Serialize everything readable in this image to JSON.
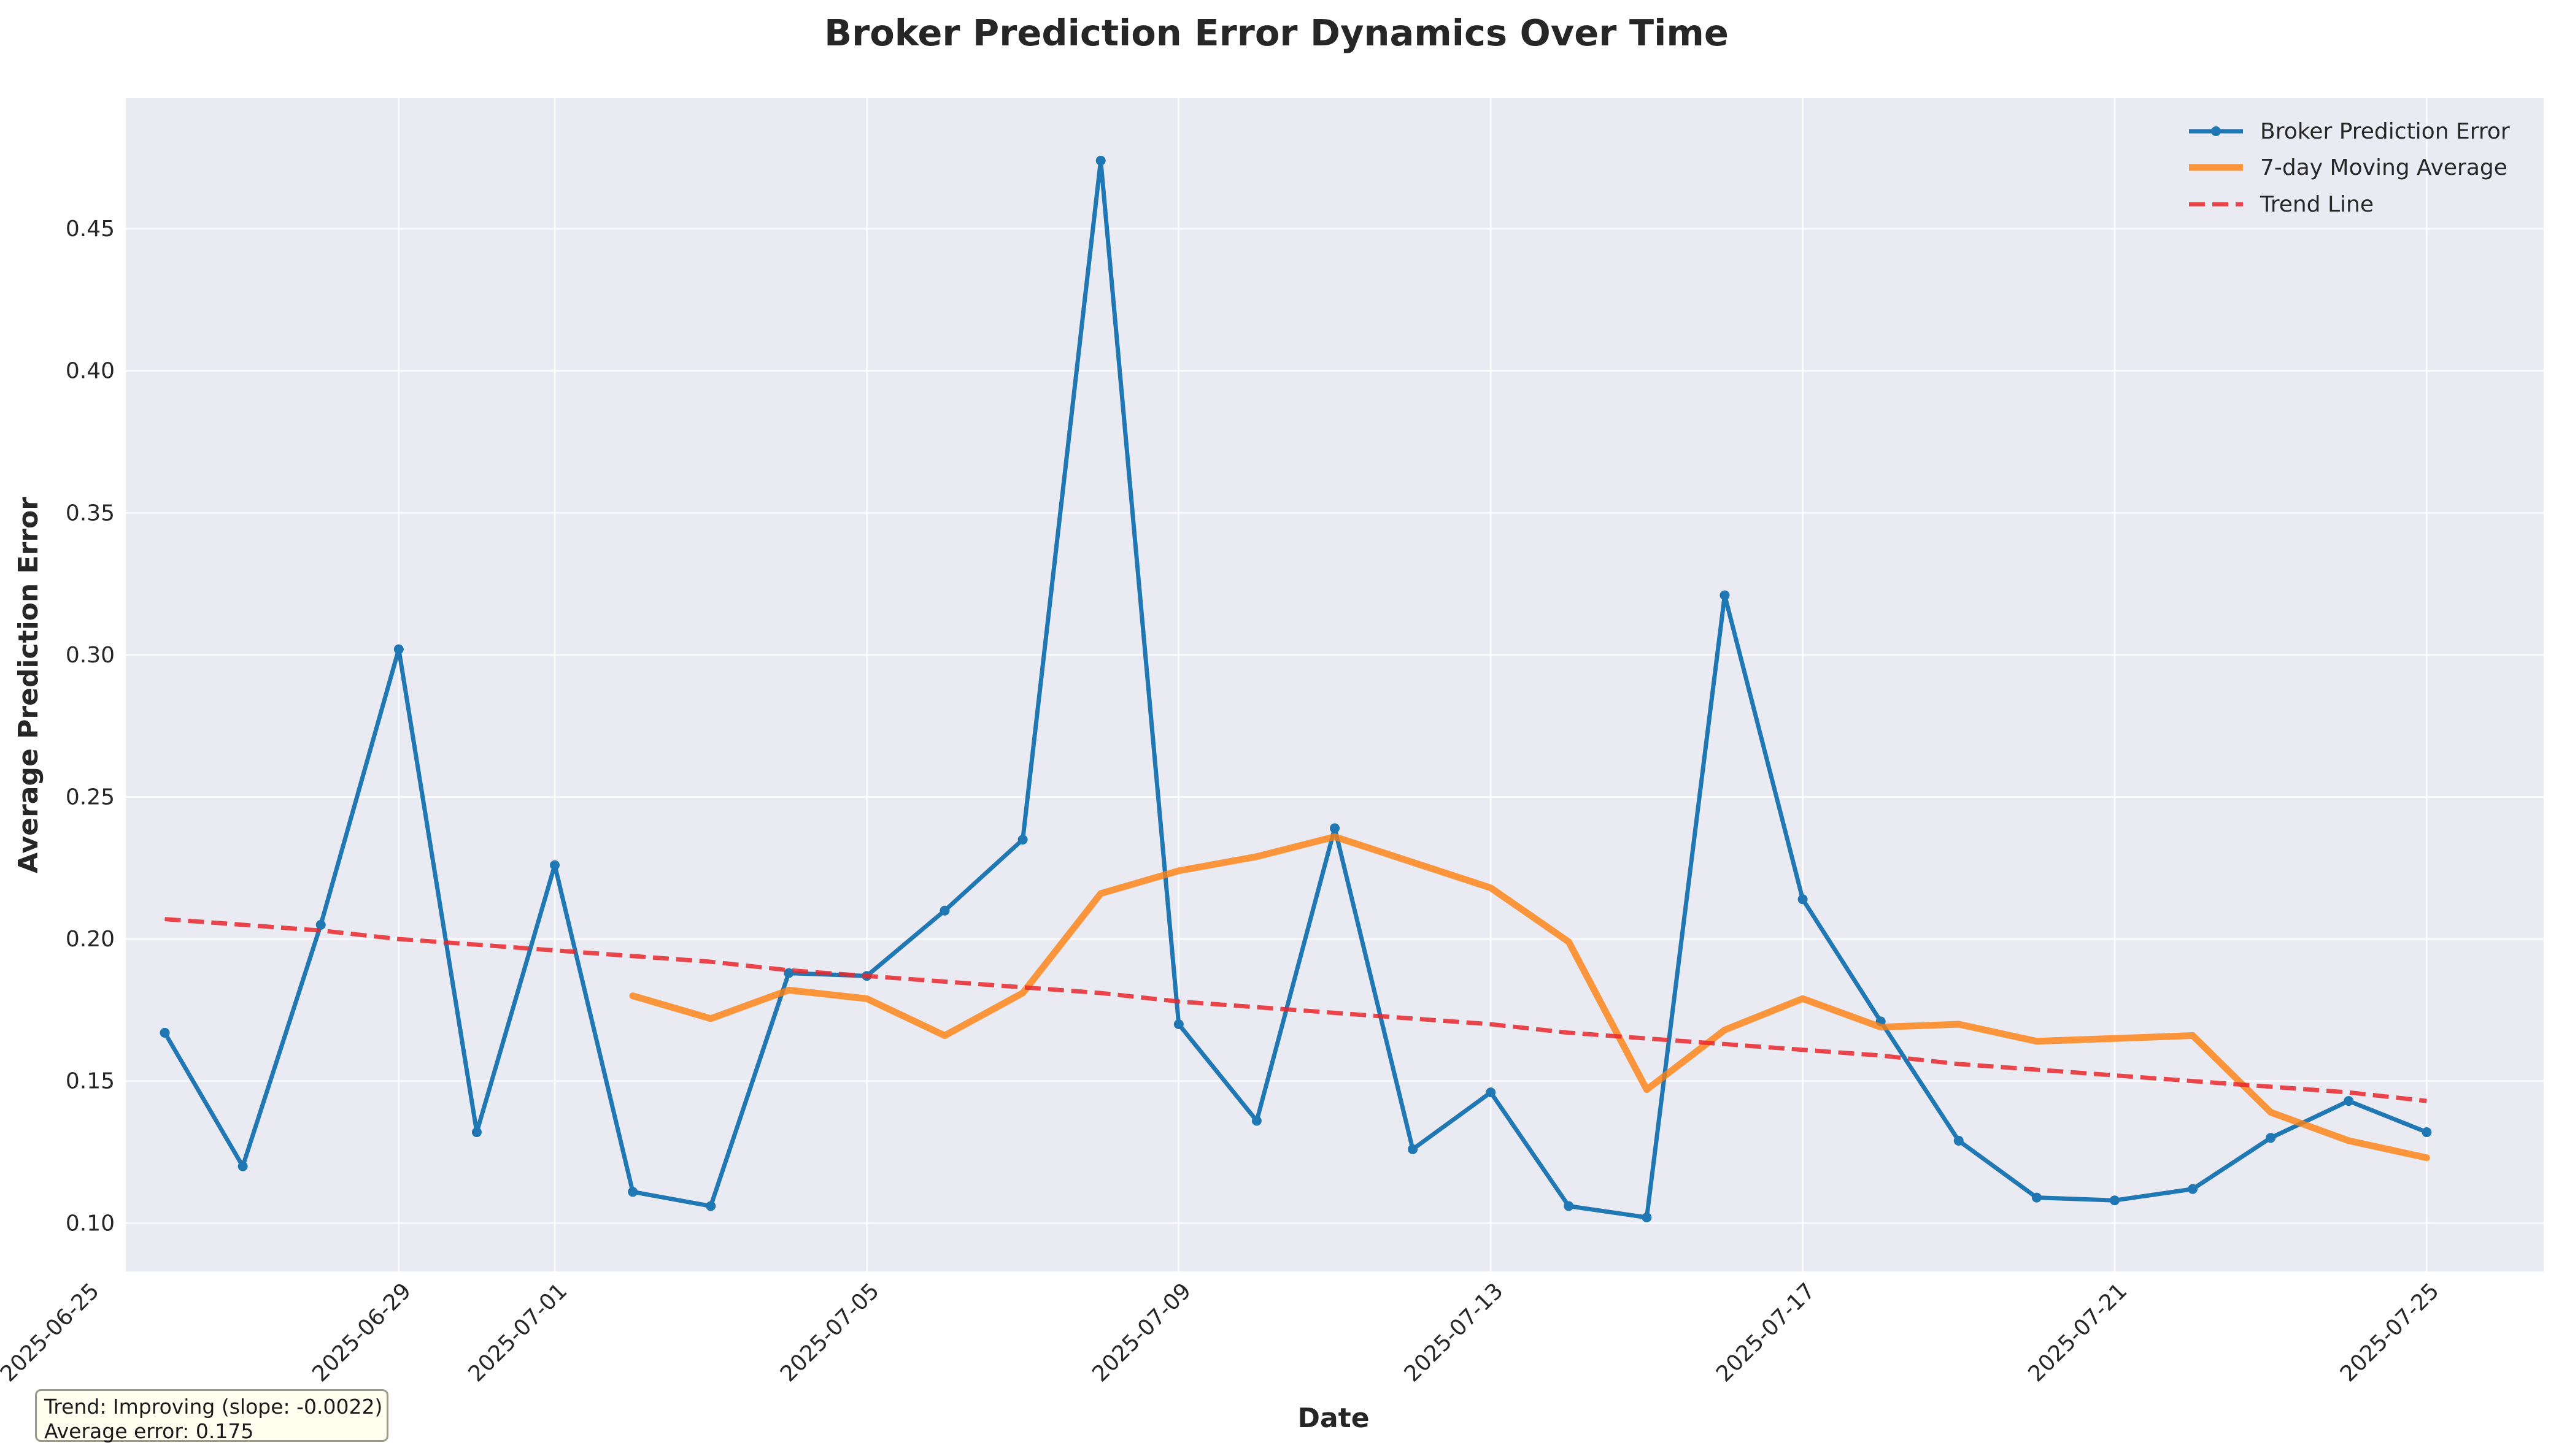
{
  "chart_data": {
    "type": "line",
    "title": "Broker Prediction Error Dynamics Over Time",
    "xlabel": "Date",
    "ylabel": "Average Prediction Error",
    "x": [
      "2025-06-26",
      "2025-06-27",
      "2025-06-28",
      "2025-06-29",
      "2025-06-30",
      "2025-07-01",
      "2025-07-02",
      "2025-07-03",
      "2025-07-04",
      "2025-07-05",
      "2025-07-06",
      "2025-07-07",
      "2025-07-08",
      "2025-07-09",
      "2025-07-10",
      "2025-07-11",
      "2025-07-12",
      "2025-07-13",
      "2025-07-14",
      "2025-07-15",
      "2025-07-16",
      "2025-07-17",
      "2025-07-18",
      "2025-07-19",
      "2025-07-20",
      "2025-07-21",
      "2025-07-22",
      "2025-07-23",
      "2025-07-24",
      "2025-07-25"
    ],
    "xlim": [
      "2025-06-25T12:00",
      "2025-07-26T12:00"
    ],
    "ylim": [
      0.083,
      0.496
    ],
    "xticks": [
      "2025-06-25",
      "2025-06-29",
      "2025-07-01",
      "2025-07-05",
      "2025-07-09",
      "2025-07-13",
      "2025-07-17",
      "2025-07-21",
      "2025-07-25"
    ],
    "yticks": [
      "0.10",
      "0.15",
      "0.20",
      "0.25",
      "0.30",
      "0.35",
      "0.40",
      "0.45"
    ],
    "grid": true,
    "legend_position": "top-right",
    "series": [
      {
        "name": "Broker Prediction Error",
        "color": "#1f77b4",
        "marker": "circle",
        "values": [
          0.167,
          0.12,
          0.205,
          0.302,
          0.132,
          0.226,
          0.111,
          0.106,
          0.188,
          0.187,
          0.21,
          0.235,
          0.474,
          0.17,
          0.136,
          0.239,
          0.126,
          0.146,
          0.106,
          0.102,
          0.321,
          0.214,
          0.171,
          0.129,
          0.109,
          0.108,
          0.112,
          0.13,
          0.143,
          0.132
        ]
      },
      {
        "name": "7-day Moving Average",
        "color": "#ff7f0e",
        "values": [
          null,
          null,
          null,
          null,
          null,
          null,
          0.18,
          0.172,
          0.182,
          0.179,
          0.166,
          0.181,
          0.216,
          0.224,
          0.229,
          0.236,
          0.227,
          0.218,
          0.199,
          0.147,
          0.168,
          0.179,
          0.169,
          0.17,
          0.164,
          0.165,
          0.166,
          0.139,
          0.129,
          0.123
        ]
      },
      {
        "name": "Trend Line",
        "color": "#e8272b",
        "dashed": true,
        "values": [
          0.207,
          0.205,
          0.203,
          0.2,
          0.198,
          0.196,
          0.194,
          0.192,
          0.189,
          0.187,
          0.185,
          0.183,
          0.181,
          0.178,
          0.176,
          0.174,
          0.172,
          0.17,
          0.167,
          0.165,
          0.163,
          0.161,
          0.159,
          0.156,
          0.154,
          0.152,
          0.15,
          0.148,
          0.146,
          0.143
        ]
      }
    ]
  },
  "annotation": {
    "line1": "Trend: Improving (slope: -0.0022)",
    "line2": "Average error: 0.175"
  }
}
